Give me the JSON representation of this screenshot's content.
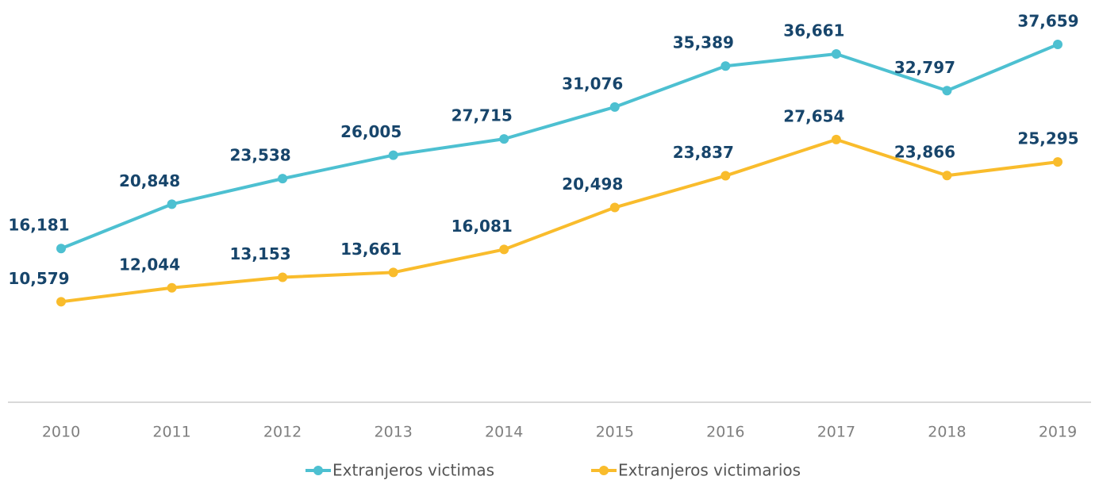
{
  "chart_data": {
    "type": "line",
    "categories": [
      "2010",
      "2011",
      "2012",
      "2013",
      "2014",
      "2015",
      "2016",
      "2017",
      "2018",
      "2019"
    ],
    "ylim": [
      0,
      40000
    ],
    "series": [
      {
        "name": "Extranjeros victimas",
        "color": "#4dc0d1",
        "values": [
          16181,
          20848,
          23538,
          26005,
          27715,
          31076,
          35389,
          36661,
          32797,
          37659
        ],
        "value_labels": [
          "16,181",
          "20,848",
          "23,538",
          "26,005",
          "27,715",
          "31,076",
          "35,389",
          "36,661",
          "32,797",
          "37,659"
        ]
      },
      {
        "name": "Extranjeros victimarios",
        "color": "#f9bc2c",
        "values": [
          10579,
          12044,
          13153,
          13661,
          16081,
          20498,
          23837,
          27654,
          23866,
          25295
        ],
        "value_labels": [
          "10,579",
          "12,044",
          "13,153",
          "13,661",
          "16,081",
          "20,498",
          "23,837",
          "27,654",
          "23,866",
          "25,295"
        ]
      }
    ]
  }
}
